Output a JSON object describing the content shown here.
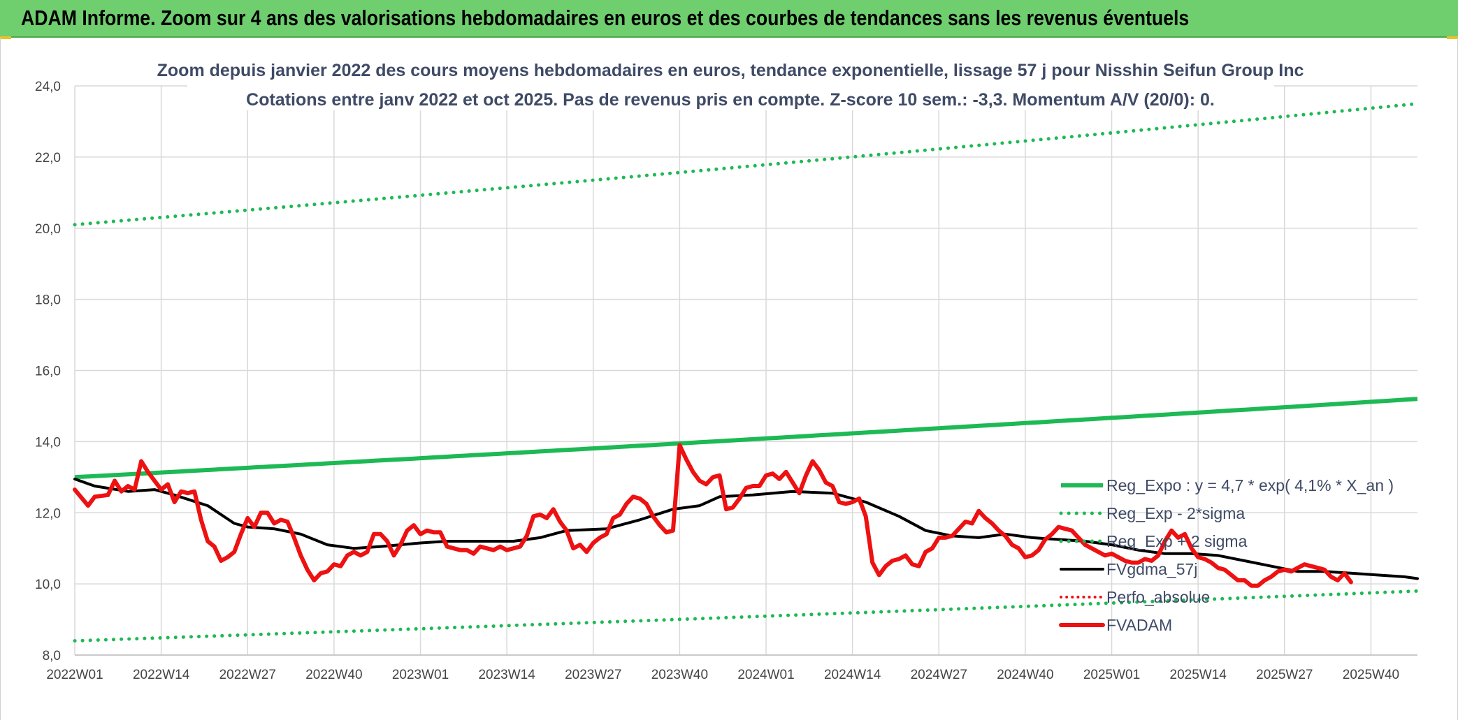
{
  "header": {
    "title": "ADAM Informe. Zoom sur 4 ans des valorisations hebdomadaires en euros et des courbes de tendances sans les revenus éventuels"
  },
  "colors": {
    "banner": "#6fcf6f",
    "trend": "#1db954",
    "fvgdma": "#000000",
    "fvadam": "#ee1111",
    "perfo": "#ee1111"
  },
  "chart_data": {
    "type": "line",
    "title_line1": "Zoom depuis janvier 2022 des cours moyens hebdomadaires en euros, tendance exponentielle, lissage 57 j pour Nisshin Seifun Group Inc",
    "title_line2": "Cotations entre janv 2022 et oct 2025. Pas de revenus pris en compte. Z-score 10 sem.: -3,3. Momentum A/V (20/0): 0.",
    "ylim": [
      8,
      24
    ],
    "y_ticks": [
      "8,0",
      "10,0",
      "12,0",
      "14,0",
      "16,0",
      "18,0",
      "20,0",
      "22,0",
      "24,0"
    ],
    "y_tick_values": [
      8,
      10,
      12,
      14,
      16,
      18,
      20,
      22,
      24
    ],
    "x_ticks": [
      "2022W01",
      "2022W14",
      "2022W27",
      "2022W40",
      "2023W01",
      "2023W14",
      "2023W27",
      "2023W40",
      "2024W01",
      "2024W14",
      "2024W27",
      "2024W40",
      "2025W01",
      "2025W14",
      "2025W27",
      "2025W40"
    ],
    "x_tick_weeks": [
      0,
      13,
      26,
      39,
      52,
      65,
      78,
      91,
      104,
      117,
      130,
      143,
      156,
      169,
      182,
      195
    ],
    "x_max_week": 202,
    "grid": true,
    "legend_position": "right",
    "legend": [
      "Reg_Expo : y = 4,7 * exp( 4,1% *  X_an )",
      "Reg_Exp - 2*sigma",
      "Reg_Exp + 2 sigma",
      "FVgdma_57j",
      "Perfo_absolue",
      "FVADAM"
    ],
    "series": [
      {
        "name": "Reg_Expo : y = 4,7 * exp( 4,1% *  X_an )",
        "style": "solid-green",
        "start": 13.0,
        "end": 15.2
      },
      {
        "name": "Reg_Exp - 2*sigma",
        "style": "dotted-green",
        "start": 8.4,
        "end": 9.8
      },
      {
        "name": "Reg_Exp + 2 sigma",
        "style": "dotted-green",
        "start": 20.1,
        "end": 23.5
      },
      {
        "name": "FVgdma_57j",
        "style": "solid-black",
        "points": [
          [
            0,
            12.95
          ],
          [
            3,
            12.75
          ],
          [
            8,
            12.6
          ],
          [
            12,
            12.65
          ],
          [
            15,
            12.5
          ],
          [
            20,
            12.2
          ],
          [
            24,
            11.7
          ],
          [
            26,
            11.6
          ],
          [
            30,
            11.55
          ],
          [
            34,
            11.4
          ],
          [
            38,
            11.1
          ],
          [
            42,
            11.0
          ],
          [
            46,
            11.05
          ],
          [
            52,
            11.15
          ],
          [
            56,
            11.2
          ],
          [
            60,
            11.2
          ],
          [
            66,
            11.2
          ],
          [
            70,
            11.3
          ],
          [
            74,
            11.5
          ],
          [
            80,
            11.55
          ],
          [
            85,
            11.8
          ],
          [
            90,
            12.1
          ],
          [
            94,
            12.2
          ],
          [
            97,
            12.45
          ],
          [
            102,
            12.5
          ],
          [
            108,
            12.6
          ],
          [
            114,
            12.55
          ],
          [
            119,
            12.3
          ],
          [
            124,
            11.9
          ],
          [
            128,
            11.5
          ],
          [
            132,
            11.35
          ],
          [
            136,
            11.3
          ],
          [
            140,
            11.4
          ],
          [
            144,
            11.3
          ],
          [
            148,
            11.25
          ],
          [
            152,
            11.2
          ],
          [
            156,
            11.1
          ],
          [
            160,
            10.95
          ],
          [
            164,
            10.85
          ],
          [
            168,
            10.85
          ],
          [
            172,
            10.8
          ],
          [
            176,
            10.65
          ],
          [
            180,
            10.5
          ],
          [
            184,
            10.35
          ],
          [
            188,
            10.35
          ],
          [
            192,
            10.3
          ],
          [
            196,
            10.25
          ],
          [
            200,
            10.2
          ],
          [
            202,
            10.15
          ]
        ]
      },
      {
        "name": "FVADAM",
        "style": "solid-red",
        "points": [
          [
            0,
            12.65
          ],
          [
            2,
            12.2
          ],
          [
            3,
            12.45
          ],
          [
            5,
            12.5
          ],
          [
            6,
            12.9
          ],
          [
            7,
            12.6
          ],
          [
            8,
            12.75
          ],
          [
            9,
            12.65
          ],
          [
            10,
            13.45
          ],
          [
            11,
            13.15
          ],
          [
            12,
            12.9
          ],
          [
            13,
            12.65
          ],
          [
            14,
            12.8
          ],
          [
            15,
            12.3
          ],
          [
            16,
            12.6
          ],
          [
            17,
            12.55
          ],
          [
            18,
            12.6
          ],
          [
            19,
            11.8
          ],
          [
            20,
            11.2
          ],
          [
            21,
            11.05
          ],
          [
            22,
            10.65
          ],
          [
            23,
            10.75
          ],
          [
            24,
            10.9
          ],
          [
            25,
            11.4
          ],
          [
            26,
            11.85
          ],
          [
            27,
            11.6
          ],
          [
            28,
            12.0
          ],
          [
            29,
            12.0
          ],
          [
            30,
            11.7
          ],
          [
            31,
            11.8
          ],
          [
            32,
            11.75
          ],
          [
            33,
            11.3
          ],
          [
            34,
            10.8
          ],
          [
            35,
            10.4
          ],
          [
            36,
            10.1
          ],
          [
            37,
            10.3
          ],
          [
            38,
            10.35
          ],
          [
            39,
            10.55
          ],
          [
            40,
            10.5
          ],
          [
            41,
            10.8
          ],
          [
            42,
            10.9
          ],
          [
            43,
            10.8
          ],
          [
            44,
            10.9
          ],
          [
            45,
            11.4
          ],
          [
            46,
            11.4
          ],
          [
            47,
            11.2
          ],
          [
            48,
            10.8
          ],
          [
            49,
            11.1
          ],
          [
            50,
            11.5
          ],
          [
            51,
            11.65
          ],
          [
            52,
            11.4
          ],
          [
            53,
            11.5
          ],
          [
            54,
            11.45
          ],
          [
            55,
            11.45
          ],
          [
            56,
            11.05
          ],
          [
            57,
            11.0
          ],
          [
            58,
            10.95
          ],
          [
            59,
            10.95
          ],
          [
            60,
            10.85
          ],
          [
            61,
            11.05
          ],
          [
            62,
            11.0
          ],
          [
            63,
            10.95
          ],
          [
            64,
            11.05
          ],
          [
            65,
            10.95
          ],
          [
            66,
            11.0
          ],
          [
            67,
            11.05
          ],
          [
            68,
            11.35
          ],
          [
            69,
            11.9
          ],
          [
            70,
            11.95
          ],
          [
            71,
            11.85
          ],
          [
            72,
            12.1
          ],
          [
            73,
            11.75
          ],
          [
            74,
            11.5
          ],
          [
            75,
            11.0
          ],
          [
            76,
            11.1
          ],
          [
            77,
            10.9
          ],
          [
            78,
            11.15
          ],
          [
            79,
            11.3
          ],
          [
            80,
            11.4
          ],
          [
            81,
            11.85
          ],
          [
            82,
            11.95
          ],
          [
            83,
            12.25
          ],
          [
            84,
            12.45
          ],
          [
            85,
            12.4
          ],
          [
            86,
            12.25
          ],
          [
            87,
            11.9
          ],
          [
            88,
            11.65
          ],
          [
            89,
            11.45
          ],
          [
            90,
            11.5
          ],
          [
            91,
            13.9
          ],
          [
            92,
            13.5
          ],
          [
            93,
            13.15
          ],
          [
            94,
            12.9
          ],
          [
            95,
            12.8
          ],
          [
            96,
            13.0
          ],
          [
            97,
            13.05
          ],
          [
            98,
            12.1
          ],
          [
            99,
            12.15
          ],
          [
            100,
            12.4
          ],
          [
            101,
            12.7
          ],
          [
            102,
            12.75
          ],
          [
            103,
            12.75
          ],
          [
            104,
            13.05
          ],
          [
            105,
            13.1
          ],
          [
            106,
            12.95
          ],
          [
            107,
            13.15
          ],
          [
            108,
            12.85
          ],
          [
            109,
            12.55
          ],
          [
            110,
            13.05
          ],
          [
            111,
            13.45
          ],
          [
            112,
            13.2
          ],
          [
            113,
            12.85
          ],
          [
            114,
            12.75
          ],
          [
            115,
            12.3
          ],
          [
            116,
            12.25
          ],
          [
            117,
            12.3
          ],
          [
            118,
            12.4
          ],
          [
            119,
            11.9
          ],
          [
            120,
            10.6
          ],
          [
            121,
            10.25
          ],
          [
            122,
            10.5
          ],
          [
            123,
            10.65
          ],
          [
            124,
            10.7
          ],
          [
            125,
            10.8
          ],
          [
            126,
            10.55
          ],
          [
            127,
            10.5
          ],
          [
            128,
            10.9
          ],
          [
            129,
            11.0
          ],
          [
            130,
            11.3
          ],
          [
            131,
            11.3
          ],
          [
            132,
            11.35
          ],
          [
            133,
            11.55
          ],
          [
            134,
            11.75
          ],
          [
            135,
            11.7
          ],
          [
            136,
            12.05
          ],
          [
            137,
            11.85
          ],
          [
            138,
            11.7
          ],
          [
            139,
            11.5
          ],
          [
            140,
            11.35
          ],
          [
            141,
            11.1
          ],
          [
            142,
            11.0
          ],
          [
            143,
            10.75
          ],
          [
            144,
            10.8
          ],
          [
            145,
            10.95
          ],
          [
            146,
            11.25
          ],
          [
            147,
            11.4
          ],
          [
            148,
            11.6
          ],
          [
            149,
            11.55
          ],
          [
            150,
            11.5
          ],
          [
            151,
            11.3
          ],
          [
            152,
            11.1
          ],
          [
            153,
            11.0
          ],
          [
            154,
            10.9
          ],
          [
            155,
            10.8
          ],
          [
            156,
            10.85
          ],
          [
            157,
            10.75
          ],
          [
            158,
            10.65
          ],
          [
            159,
            10.6
          ],
          [
            160,
            10.6
          ],
          [
            161,
            10.7
          ],
          [
            162,
            10.65
          ],
          [
            163,
            10.8
          ],
          [
            164,
            11.2
          ],
          [
            165,
            11.5
          ],
          [
            166,
            11.3
          ],
          [
            167,
            11.4
          ],
          [
            168,
            11.0
          ],
          [
            169,
            10.75
          ],
          [
            170,
            10.7
          ],
          [
            171,
            10.6
          ],
          [
            172,
            10.45
          ],
          [
            173,
            10.4
          ],
          [
            174,
            10.25
          ],
          [
            175,
            10.1
          ],
          [
            176,
            10.1
          ],
          [
            177,
            9.95
          ],
          [
            178,
            9.95
          ],
          [
            179,
            10.1
          ],
          [
            180,
            10.2
          ],
          [
            181,
            10.35
          ],
          [
            182,
            10.4
          ],
          [
            183,
            10.35
          ],
          [
            184,
            10.45
          ],
          [
            185,
            10.55
          ],
          [
            186,
            10.5
          ],
          [
            187,
            10.45
          ],
          [
            188,
            10.4
          ],
          [
            189,
            10.2
          ],
          [
            190,
            10.1
          ],
          [
            191,
            10.3
          ],
          [
            192,
            10.05
          ]
        ]
      },
      {
        "name": "Perfo_absolue",
        "style": "dotted-red",
        "points": []
      }
    ]
  }
}
